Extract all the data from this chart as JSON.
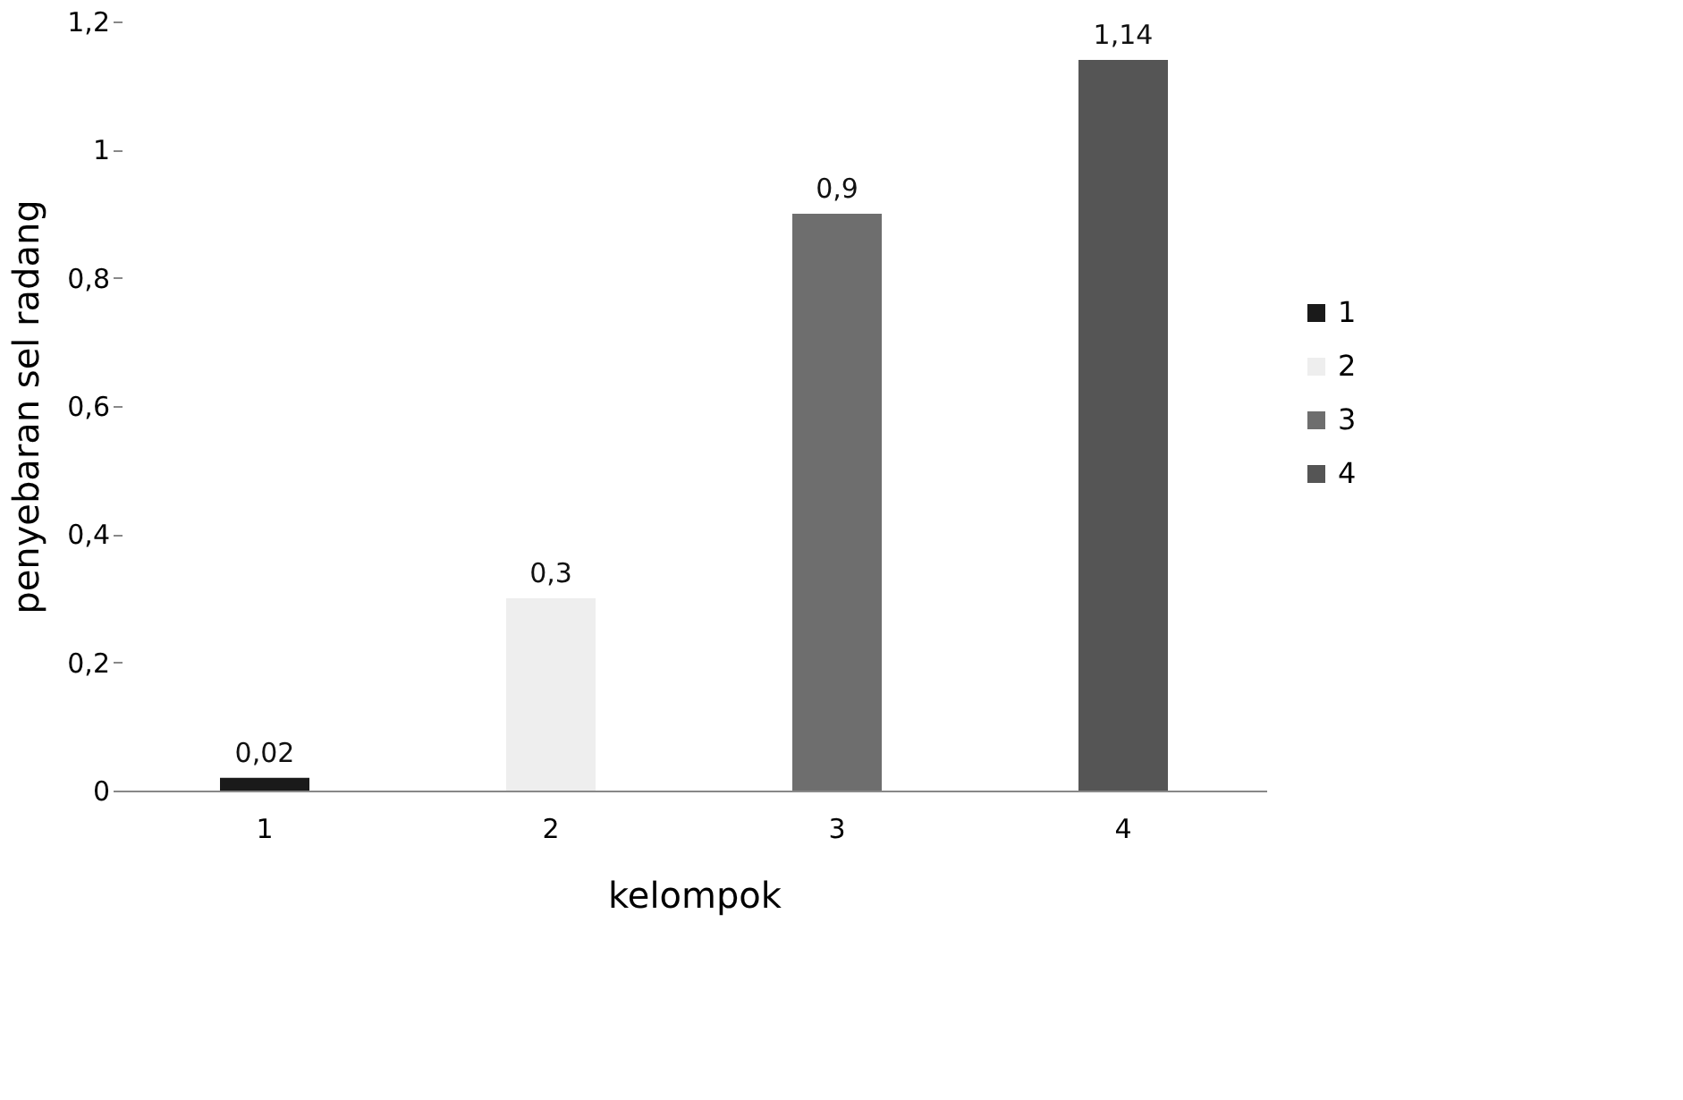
{
  "chart_data": {
    "type": "bar",
    "xlabel": "kelompok",
    "ylabel": "penyebaran sel radang",
    "categories": [
      "1",
      "2",
      "3",
      "4"
    ],
    "series": [
      {
        "name": "1",
        "color": "#1a1a1a",
        "values": [
          0.02,
          null,
          null,
          null
        ],
        "value_labels": [
          "0,02",
          null,
          null,
          null
        ]
      },
      {
        "name": "2",
        "color": "#eeeeee",
        "values": [
          null,
          0.3,
          null,
          null
        ],
        "value_labels": [
          null,
          "0,3",
          null,
          null
        ]
      },
      {
        "name": "3",
        "color": "#6e6e6e",
        "values": [
          null,
          null,
          0.9,
          null
        ],
        "value_labels": [
          null,
          null,
          "0,9",
          null
        ]
      },
      {
        "name": "4",
        "color": "#555555",
        "values": [
          null,
          null,
          null,
          1.14
        ],
        "value_labels": [
          null,
          null,
          null,
          "1,14"
        ]
      }
    ],
    "ylim": [
      0,
      1.2
    ],
    "yticks": [
      {
        "value": 0,
        "label": "0"
      },
      {
        "value": 0.2,
        "label": "0,2"
      },
      {
        "value": 0.4,
        "label": "0,4"
      },
      {
        "value": 0.6,
        "label": "0,6"
      },
      {
        "value": 0.8,
        "label": "0,8"
      },
      {
        "value": 1,
        "label": "1"
      },
      {
        "value": 1.2,
        "label": "1,2"
      }
    ],
    "grid": false,
    "legend": "right"
  }
}
